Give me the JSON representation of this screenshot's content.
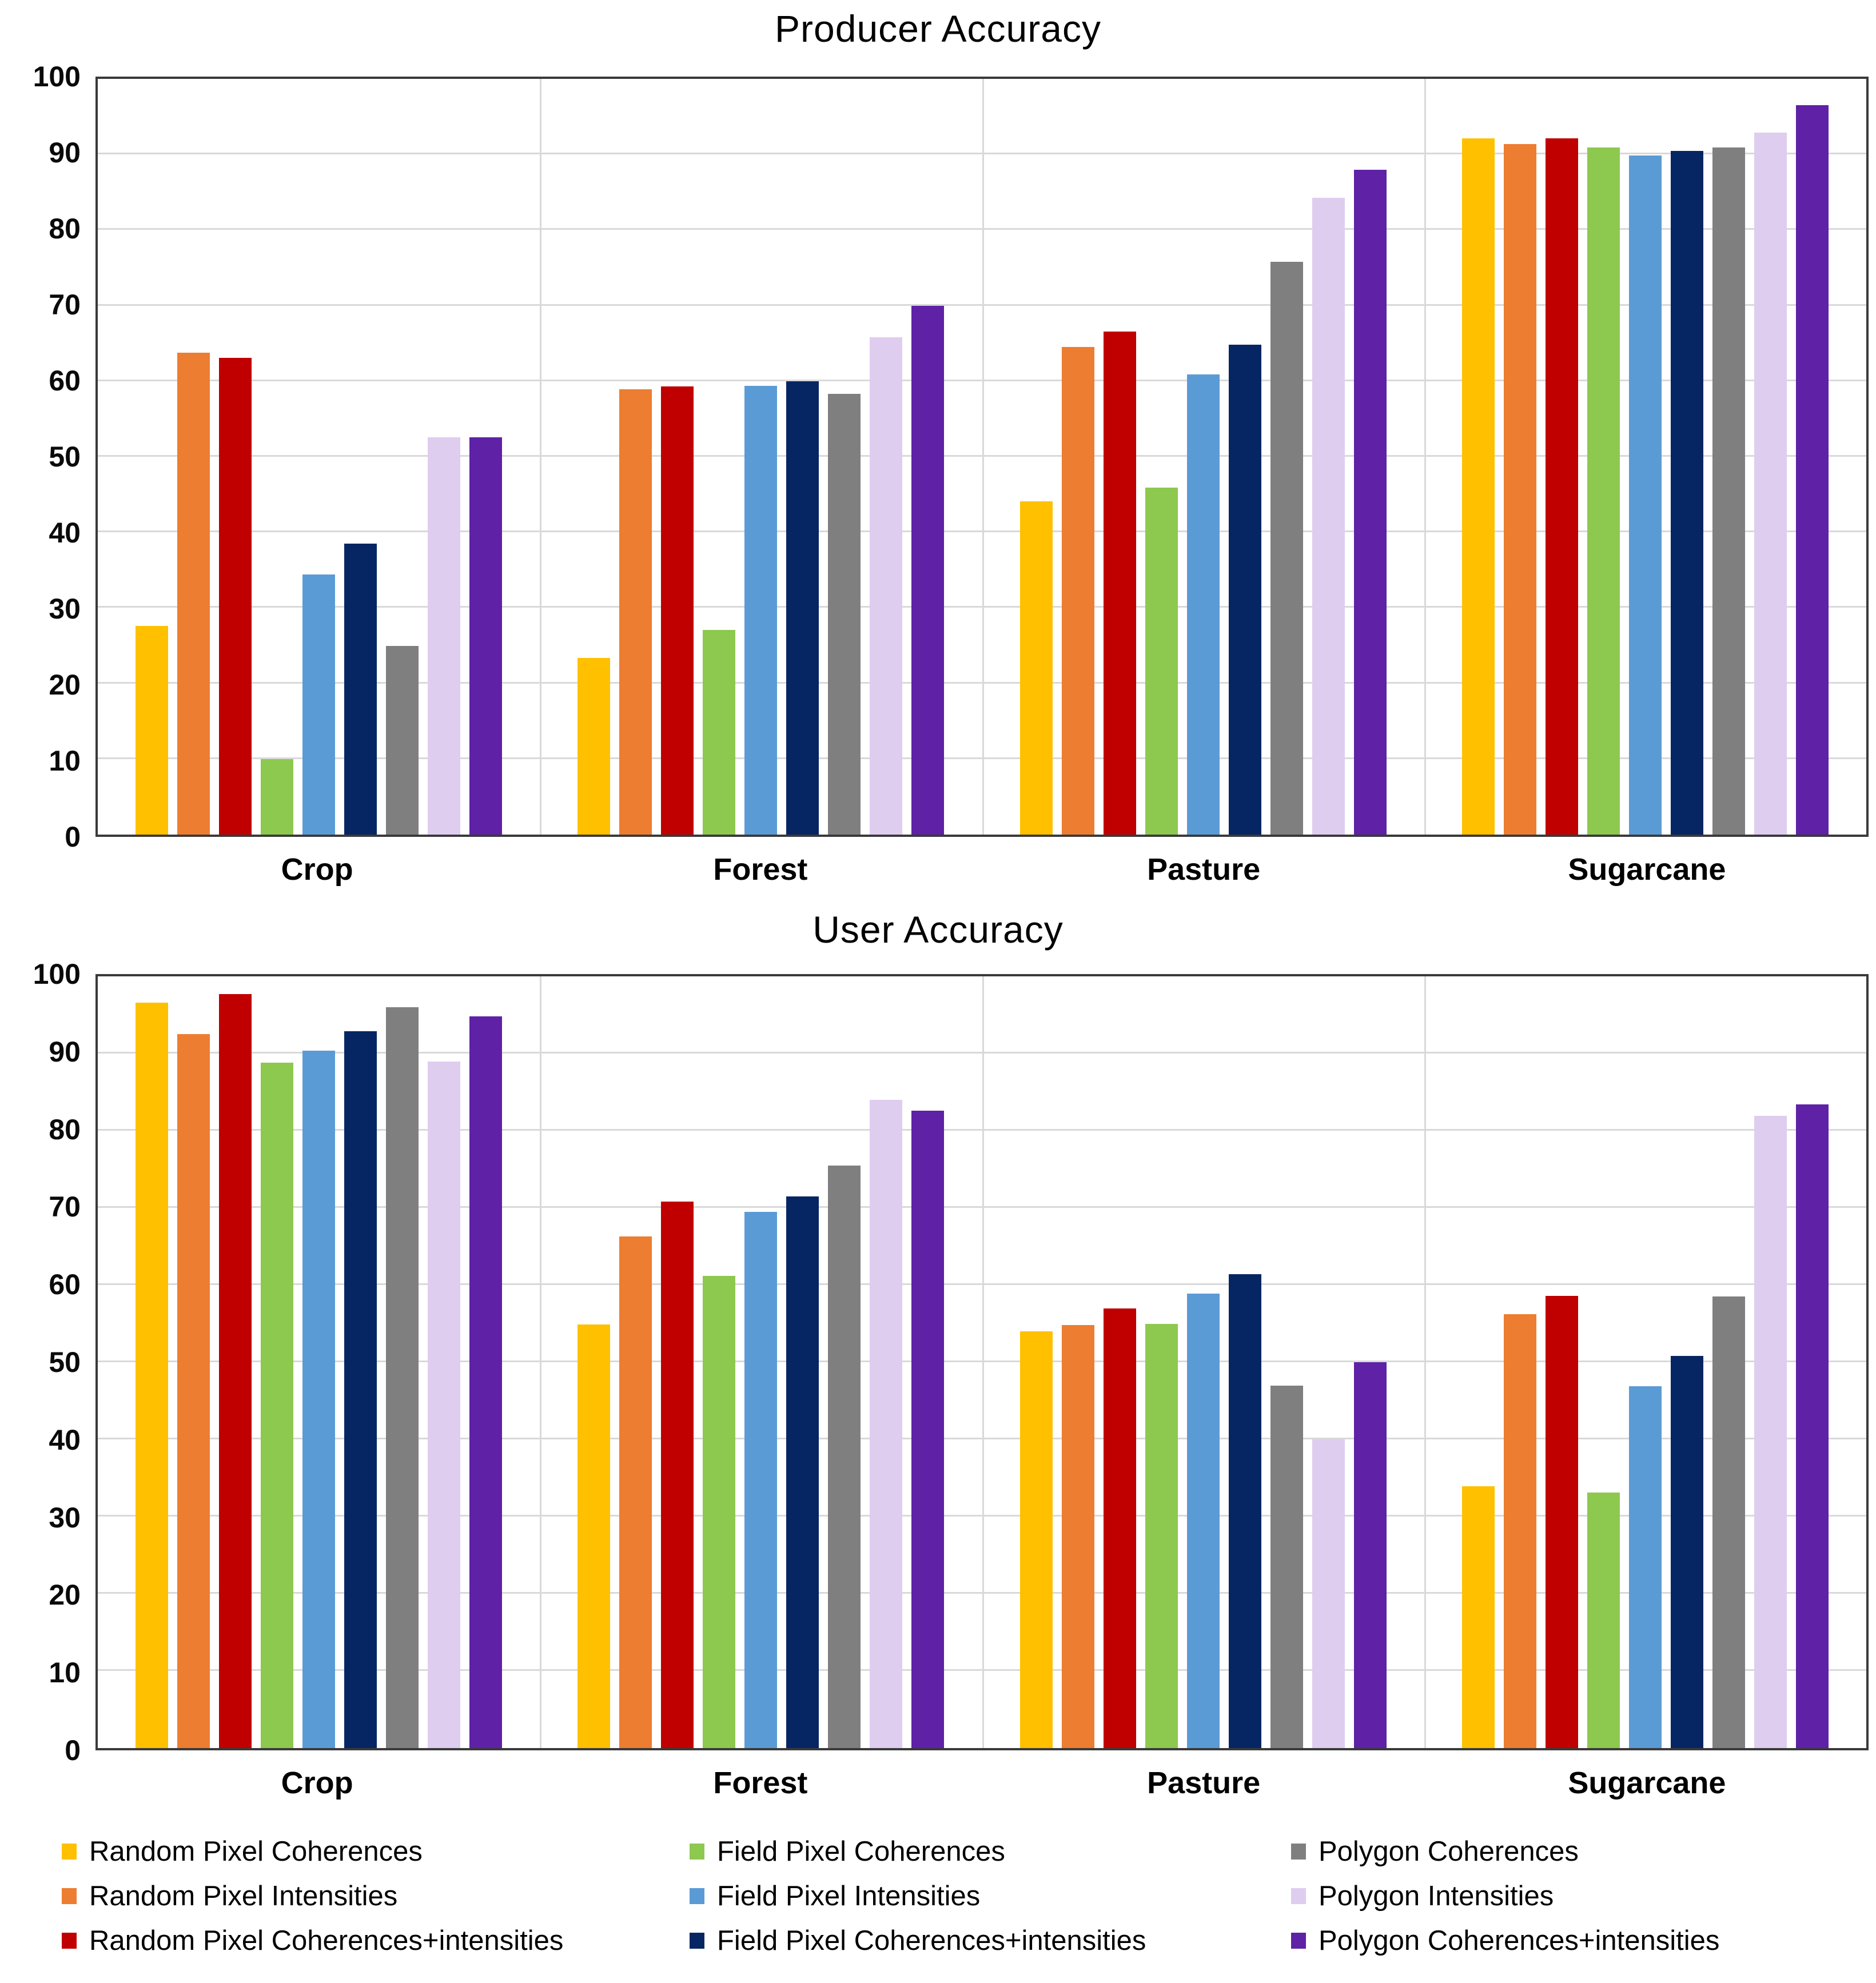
{
  "figure": {
    "background": "#FFFFFF",
    "axis_border_color": "#3A3A3A",
    "gridline_color": "#D9D9D9",
    "tick_label_color": "#0A0A0A"
  },
  "chart_data": [
    {
      "type": "bar",
      "title": "Producer Accuracy",
      "xlabel": "",
      "ylabel": "",
      "ylim": [
        0,
        100
      ],
      "ytick_step": 10,
      "grid": true,
      "legend_position": "bottom-shared",
      "categories": [
        "Crop",
        "Forest",
        "Pasture",
        "Sugarcane"
      ],
      "series": [
        {
          "name": "Random Pixel Coherences",
          "color": "#FFC000",
          "values": [
            27.6,
            23.4,
            44.1,
            92.1
          ]
        },
        {
          "name": "Random Pixel Intensities",
          "color": "#ED7D31",
          "values": [
            63.8,
            58.9,
            64.5,
            91.4
          ]
        },
        {
          "name": "Random Pixel Coherences+intensities",
          "color": "#C00000",
          "values": [
            63.1,
            59.3,
            66.6,
            92.1
          ]
        },
        {
          "name": "Field Pixel Coherences",
          "color": "#8DC84F",
          "values": [
            10.0,
            27.1,
            45.9,
            90.9
          ]
        },
        {
          "name": "Field Pixel Intensities",
          "color": "#5B9BD5",
          "values": [
            34.4,
            59.4,
            60.9,
            89.9
          ]
        },
        {
          "name": "Field Pixel Coherences+intensities",
          "color": "#062663",
          "values": [
            38.5,
            60.0,
            64.8,
            90.5
          ]
        },
        {
          "name": "Polygon Coherences",
          "color": "#7F7F7F",
          "values": [
            25.0,
            58.3,
            75.8,
            90.9
          ]
        },
        {
          "name": "Polygon Intensities",
          "color": "#DFCDF0",
          "values": [
            52.6,
            65.8,
            84.3,
            92.9
          ]
        },
        {
          "name": "Polygon Coherences+intensities",
          "color": "#5F21A6",
          "values": [
            52.6,
            70.0,
            88.0,
            96.5
          ]
        }
      ]
    },
    {
      "type": "bar",
      "title": "User Accuracy",
      "xlabel": "",
      "ylabel": "",
      "ylim": [
        0,
        100
      ],
      "ytick_step": 10,
      "grid": true,
      "legend_position": "bottom-shared",
      "categories": [
        "Crop",
        "Forest",
        "Pasture",
        "Sugarcane"
      ],
      "series": [
        {
          "name": "Random Pixel Coherences",
          "color": "#FFC000",
          "values": [
            96.6,
            54.9,
            54.0,
            33.9
          ]
        },
        {
          "name": "Random Pixel Intensities",
          "color": "#ED7D31",
          "values": [
            92.5,
            66.3,
            54.8,
            56.2
          ]
        },
        {
          "name": "Random Pixel Coherences+intensities",
          "color": "#C00000",
          "values": [
            97.7,
            70.8,
            57.0,
            58.6
          ]
        },
        {
          "name": "Field Pixel Coherences",
          "color": "#8DC84F",
          "values": [
            88.8,
            61.2,
            55.0,
            33.1
          ]
        },
        {
          "name": "Field Pixel Intensities",
          "color": "#5B9BD5",
          "values": [
            90.4,
            69.5,
            58.9,
            46.9
          ]
        },
        {
          "name": "Field Pixel Coherences+intensities",
          "color": "#062663",
          "values": [
            92.9,
            71.5,
            61.4,
            50.8
          ]
        },
        {
          "name": "Polygon Coherences",
          "color": "#7F7F7F",
          "values": [
            96.0,
            75.5,
            47.0,
            58.5
          ]
        },
        {
          "name": "Polygon Intensities",
          "color": "#DFCDF0",
          "values": [
            89.0,
            84.0,
            40.0,
            81.9
          ]
        },
        {
          "name": "Polygon Coherences+intensities",
          "color": "#5F21A6",
          "values": [
            94.8,
            82.6,
            50.0,
            83.4
          ]
        }
      ]
    }
  ],
  "legend": {
    "columns_per_row": 3,
    "items_order": "column-major, 3 columns x 3 rows"
  }
}
